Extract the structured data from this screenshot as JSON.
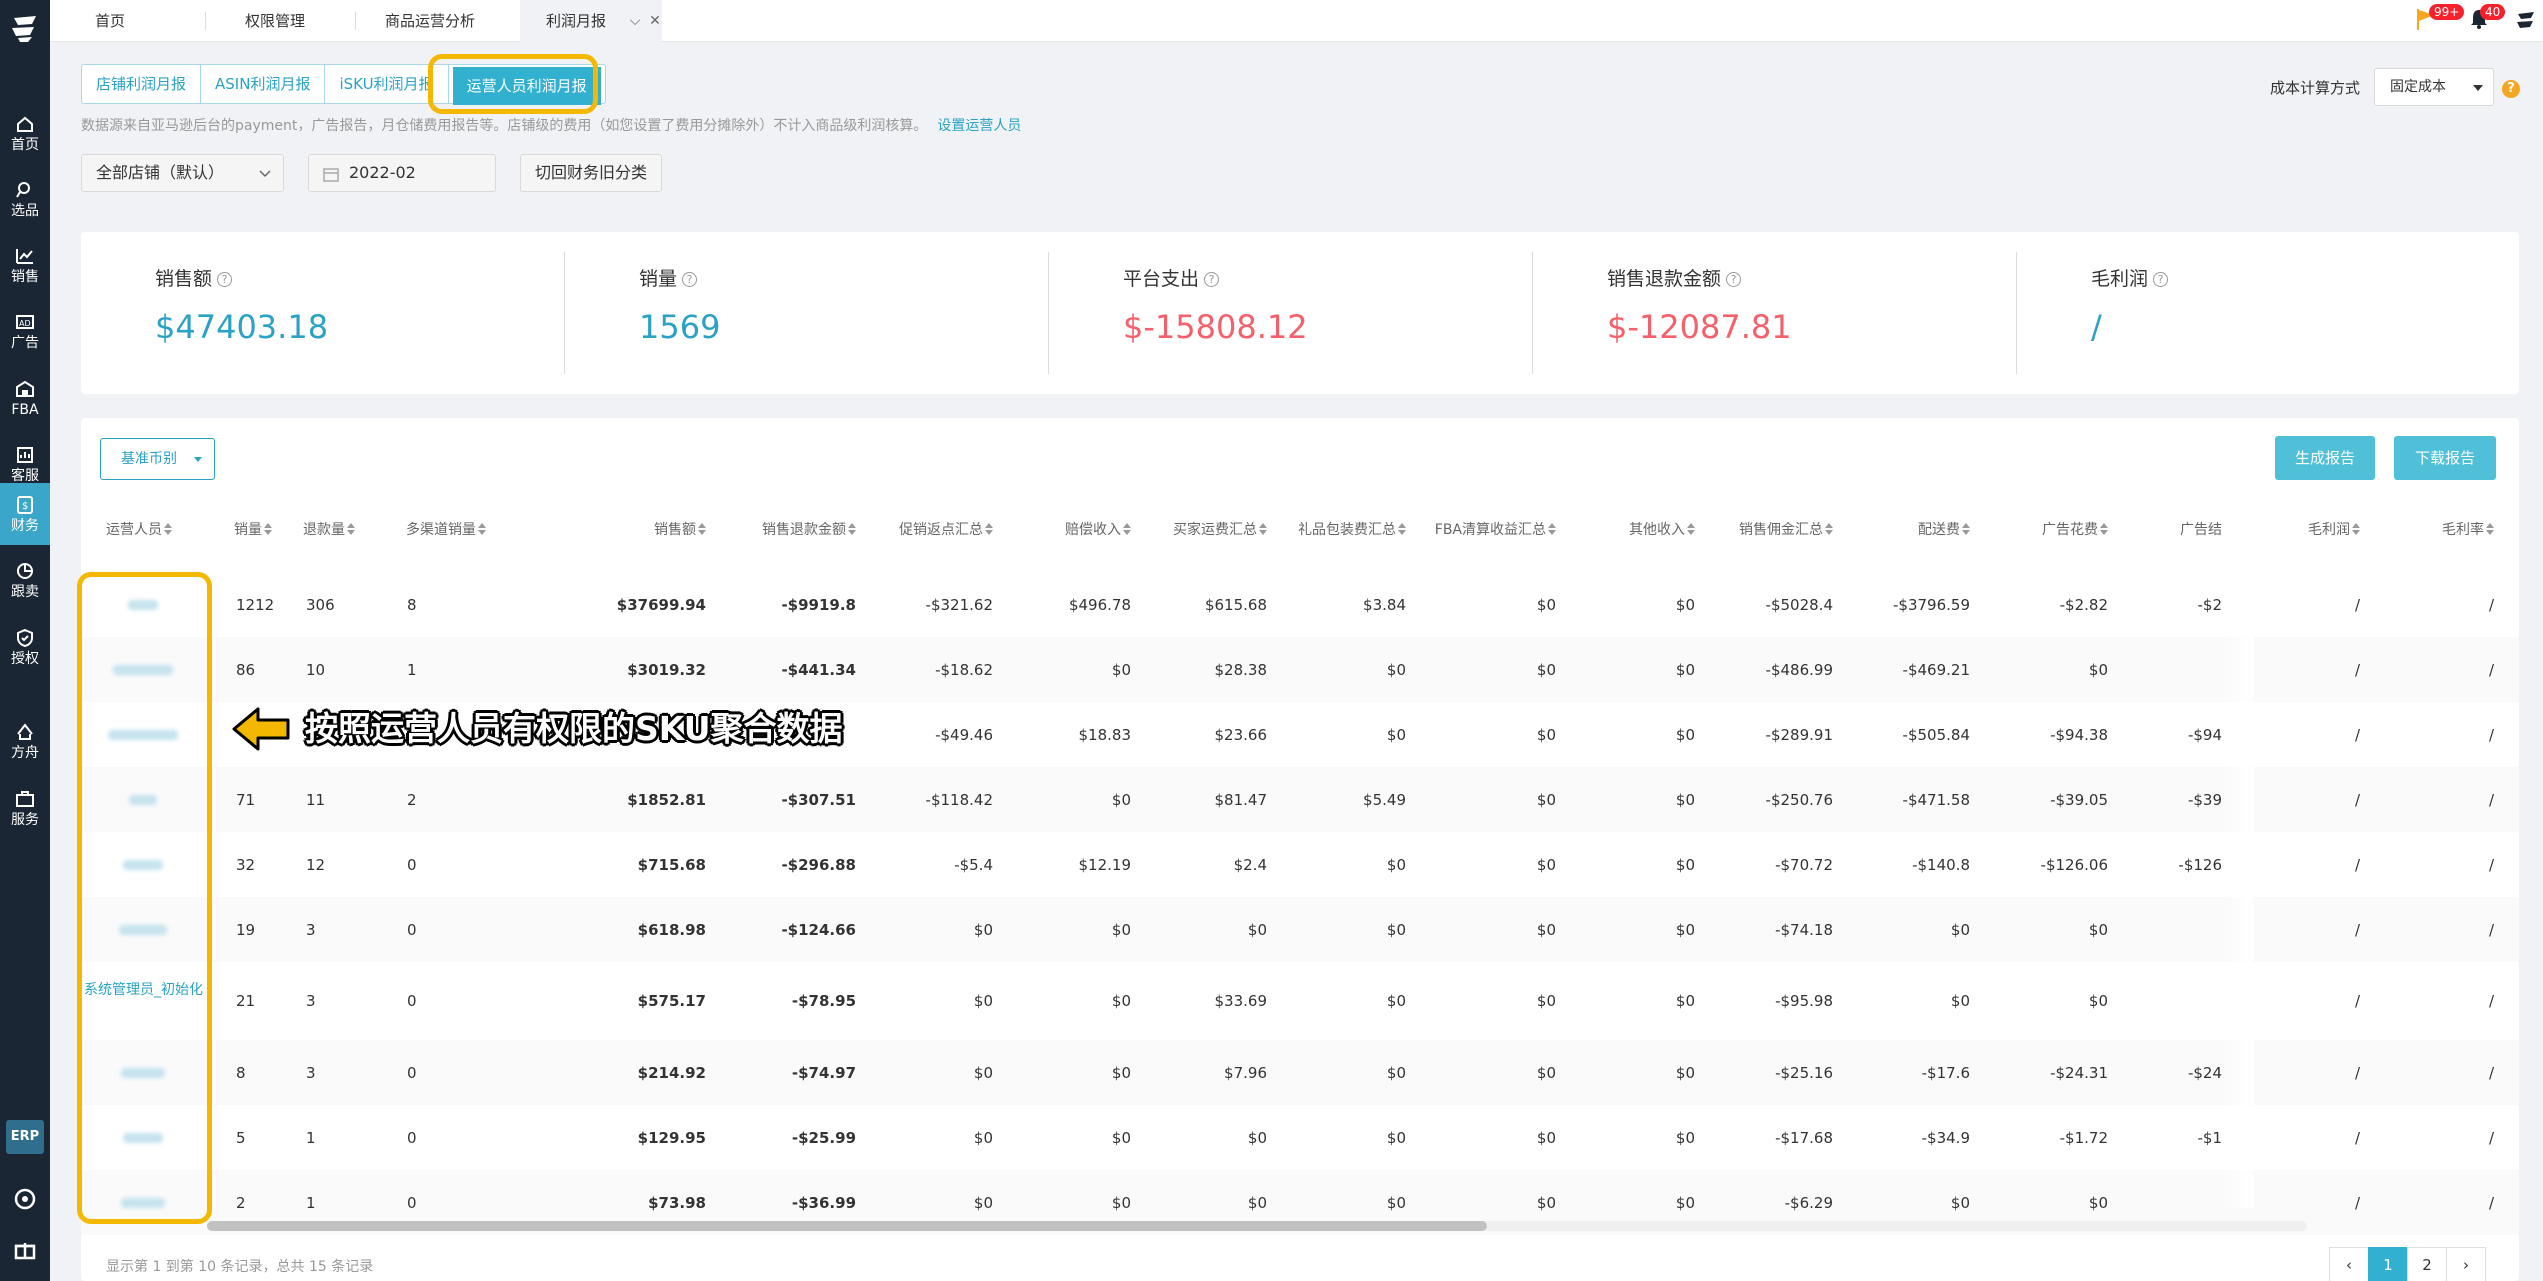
{
  "topbar": {
    "tabs": [
      "首页",
      "权限管理",
      "商品运营分析",
      "利润月报"
    ],
    "flag_badge": "99+",
    "bell_badge": "40"
  },
  "sidebar": {
    "items": [
      {
        "label": "首页",
        "icon": "home-icon"
      },
      {
        "label": "选品",
        "icon": "search-icon"
      },
      {
        "label": "销售",
        "icon": "chart-icon"
      },
      {
        "label": "广告",
        "icon": "ad-icon"
      },
      {
        "label": "FBA",
        "icon": "warehouse-icon"
      },
      {
        "label": "客服",
        "icon": "service-icon"
      },
      {
        "label": "财务",
        "icon": "finance-icon"
      },
      {
        "label": "跟卖",
        "icon": "pie-icon"
      },
      {
        "label": "授权",
        "icon": "shield-icon"
      },
      {
        "label": "方舟",
        "icon": "ark-icon"
      },
      {
        "label": "服务",
        "icon": "briefcase-icon"
      }
    ],
    "erp_label": "ERP"
  },
  "report_tabs": [
    "店铺利润月报",
    "ASIN利润月报",
    "iSKU利润月报",
    "运营人员利润月报"
  ],
  "description": "数据源来自亚马逊后台的payment，广告报告，月仓储费用报告等。店铺级的费用（如您设置了费用分摊除外）不计入商品级利润核算。",
  "description_link": "设置运营人员",
  "cost": {
    "label": "成本计算方式",
    "value": "固定成本",
    "help": "?"
  },
  "filters": {
    "store": "全部店铺（默认）",
    "month": "2022-02",
    "switch_label": "切回财务旧分类"
  },
  "stats": [
    {
      "label": "销售额",
      "value": "$47403.18",
      "color": "#2aa2c6"
    },
    {
      "label": "销量",
      "value": "1569",
      "color": "#2aa2c6"
    },
    {
      "label": "平台支出",
      "value": "$-15808.12",
      "color": "#f5606a"
    },
    {
      "label": "销售退款金额",
      "value": "$-12087.81",
      "color": "#f5606a"
    },
    {
      "label": "毛利润",
      "value": "/",
      "color": "#2aa2c6"
    }
  ],
  "table": {
    "currency_btn": "基准币别",
    "generate_btn": "生成报告",
    "download_btn": "下载报告",
    "headers": [
      "运营人员",
      "销量",
      "退款量",
      "多渠道销量",
      "销售额",
      "销售退款金额",
      "促销返点汇总",
      "赔偿收入",
      "买家运费汇总",
      "礼品包装费汇总",
      "FBA清算收益汇总",
      "其他收入",
      "销售佣金汇总",
      "配送费",
      "广告花费",
      "广告结",
      "毛利润",
      "毛利率"
    ],
    "rows": [
      {
        "name": "",
        "c": [
          "1212",
          "306",
          "8",
          "$37699.94",
          "-$9919.8",
          "-$321.62",
          "$496.78",
          "$615.68",
          "$3.84",
          "$0",
          "$0",
          "-$5028.4",
          "-$3796.59",
          "-$2.82",
          "-$2",
          "/",
          "/"
        ]
      },
      {
        "name": "",
        "c": [
          "86",
          "10",
          "1",
          "$3019.32",
          "-$441.34",
          "-$18.62",
          "$0",
          "$28.38",
          "$0",
          "$0",
          "$0",
          "-$486.99",
          "-$469.21",
          "$0",
          "",
          "/",
          "/"
        ]
      },
      {
        "name": "",
        "c": [
          "",
          "",
          "",
          "",
          "",
          "-$49.46",
          "$18.83",
          "$23.66",
          "$0",
          "$0",
          "$0",
          "-$289.91",
          "-$505.84",
          "-$94.38",
          "-$94",
          "/",
          "/"
        ]
      },
      {
        "name": "",
        "c": [
          "71",
          "11",
          "2",
          "$1852.81",
          "-$307.51",
          "-$118.42",
          "$0",
          "$81.47",
          "$5.49",
          "$0",
          "$0",
          "-$250.76",
          "-$471.58",
          "-$39.05",
          "-$39",
          "/",
          "/"
        ]
      },
      {
        "name": "",
        "c": [
          "32",
          "12",
          "0",
          "$715.68",
          "-$296.88",
          "-$5.4",
          "$12.19",
          "$2.4",
          "$0",
          "$0",
          "$0",
          "-$70.72",
          "-$140.8",
          "-$126.06",
          "-$126",
          "/",
          "/"
        ]
      },
      {
        "name": "",
        "c": [
          "19",
          "3",
          "0",
          "$618.98",
          "-$124.66",
          "$0",
          "$0",
          "$0",
          "$0",
          "$0",
          "$0",
          "-$74.18",
          "$0",
          "$0",
          "",
          "/",
          "/"
        ]
      },
      {
        "name": "系统管理员_初始化",
        "c": [
          "21",
          "3",
          "0",
          "$575.17",
          "-$78.95",
          "$0",
          "$0",
          "$33.69",
          "$0",
          "$0",
          "$0",
          "-$95.98",
          "$0",
          "$0",
          "",
          "/",
          "/"
        ]
      },
      {
        "name": "",
        "c": [
          "8",
          "3",
          "0",
          "$214.92",
          "-$74.97",
          "$0",
          "$0",
          "$7.96",
          "$0",
          "$0",
          "$0",
          "-$25.16",
          "-$17.6",
          "-$24.31",
          "-$24",
          "/",
          "/"
        ]
      },
      {
        "name": "",
        "c": [
          "5",
          "1",
          "0",
          "$129.95",
          "-$25.99",
          "$0",
          "$0",
          "$0",
          "$0",
          "$0",
          "$0",
          "-$17.68",
          "-$34.9",
          "-$1.72",
          "-$1",
          "/",
          "/"
        ]
      },
      {
        "name": "",
        "c": [
          "2",
          "1",
          "0",
          "$73.98",
          "-$36.99",
          "$0",
          "$0",
          "$0",
          "$0",
          "$0",
          "$0",
          "-$6.29",
          "$0",
          "$0",
          "",
          "/",
          "/"
        ]
      }
    ],
    "footer": "显示第 1 到第 10 条记录，总共 15 条记录",
    "pages": [
      "‹",
      "1",
      "2",
      "›"
    ]
  },
  "annotation": "按照运营人员有权限的SKU聚合数据"
}
